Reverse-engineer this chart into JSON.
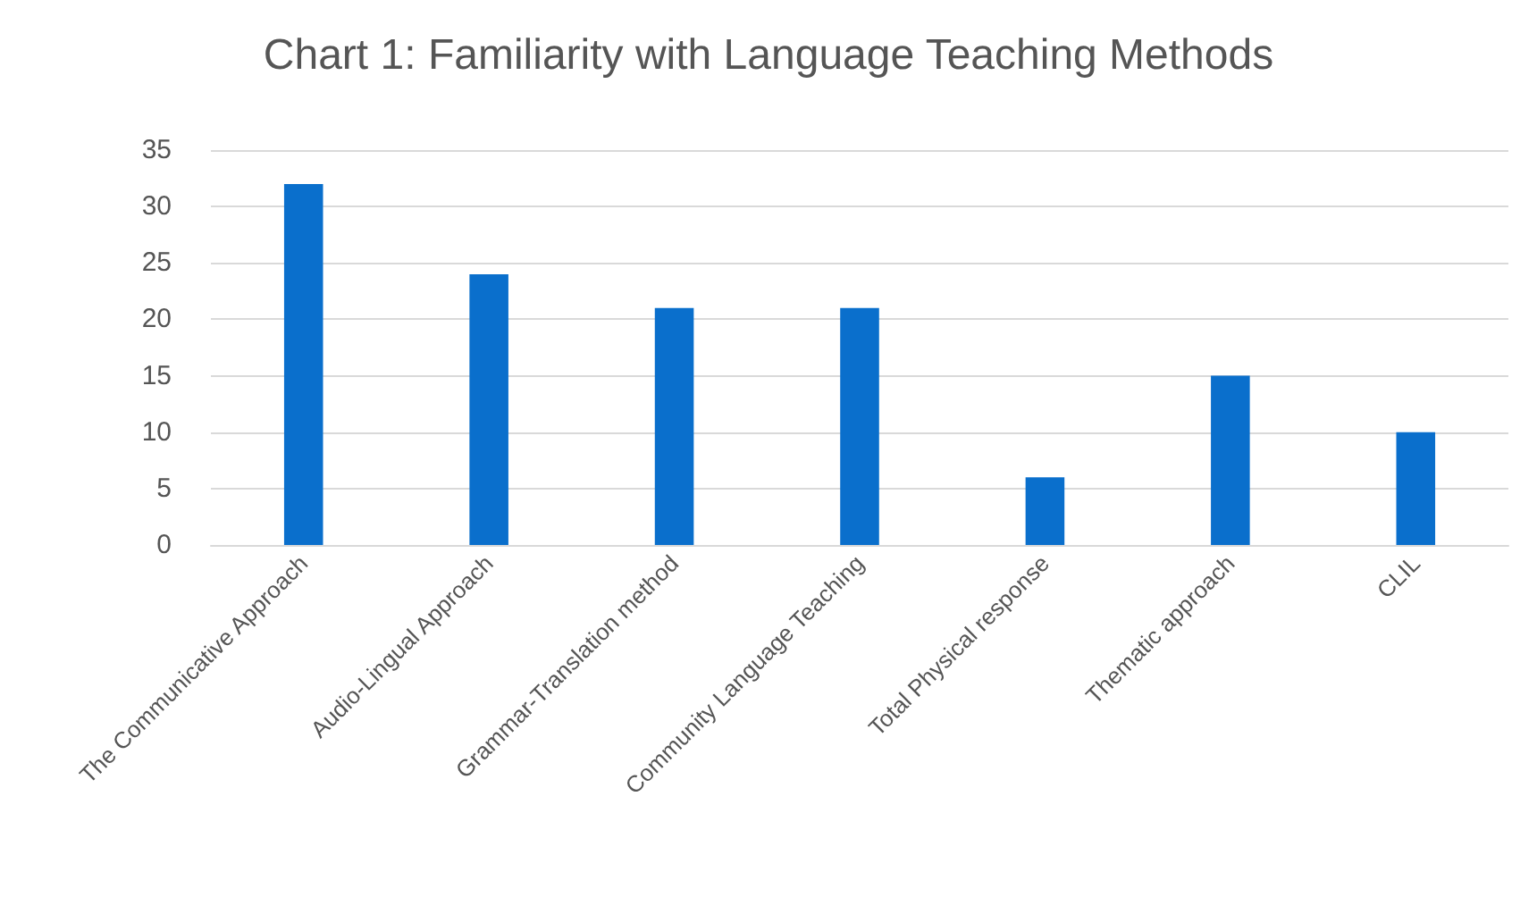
{
  "chart_data": {
    "type": "bar",
    "title": "Chart 1: Familiarity with Language Teaching Methods",
    "categories": [
      "The Communicative Approach",
      "Audio-Lingual Approach",
      "Grammar-Translation method",
      "Community Language Teaching",
      "Total Physical response",
      "Thematic approach",
      "CLIL"
    ],
    "values": [
      32,
      24,
      21,
      21,
      6,
      15,
      10
    ],
    "color": "#0a6fcc",
    "ylim": [
      0,
      35
    ],
    "yticks": [
      0,
      5,
      10,
      15,
      20,
      25,
      30,
      35
    ],
    "grid": "y"
  }
}
